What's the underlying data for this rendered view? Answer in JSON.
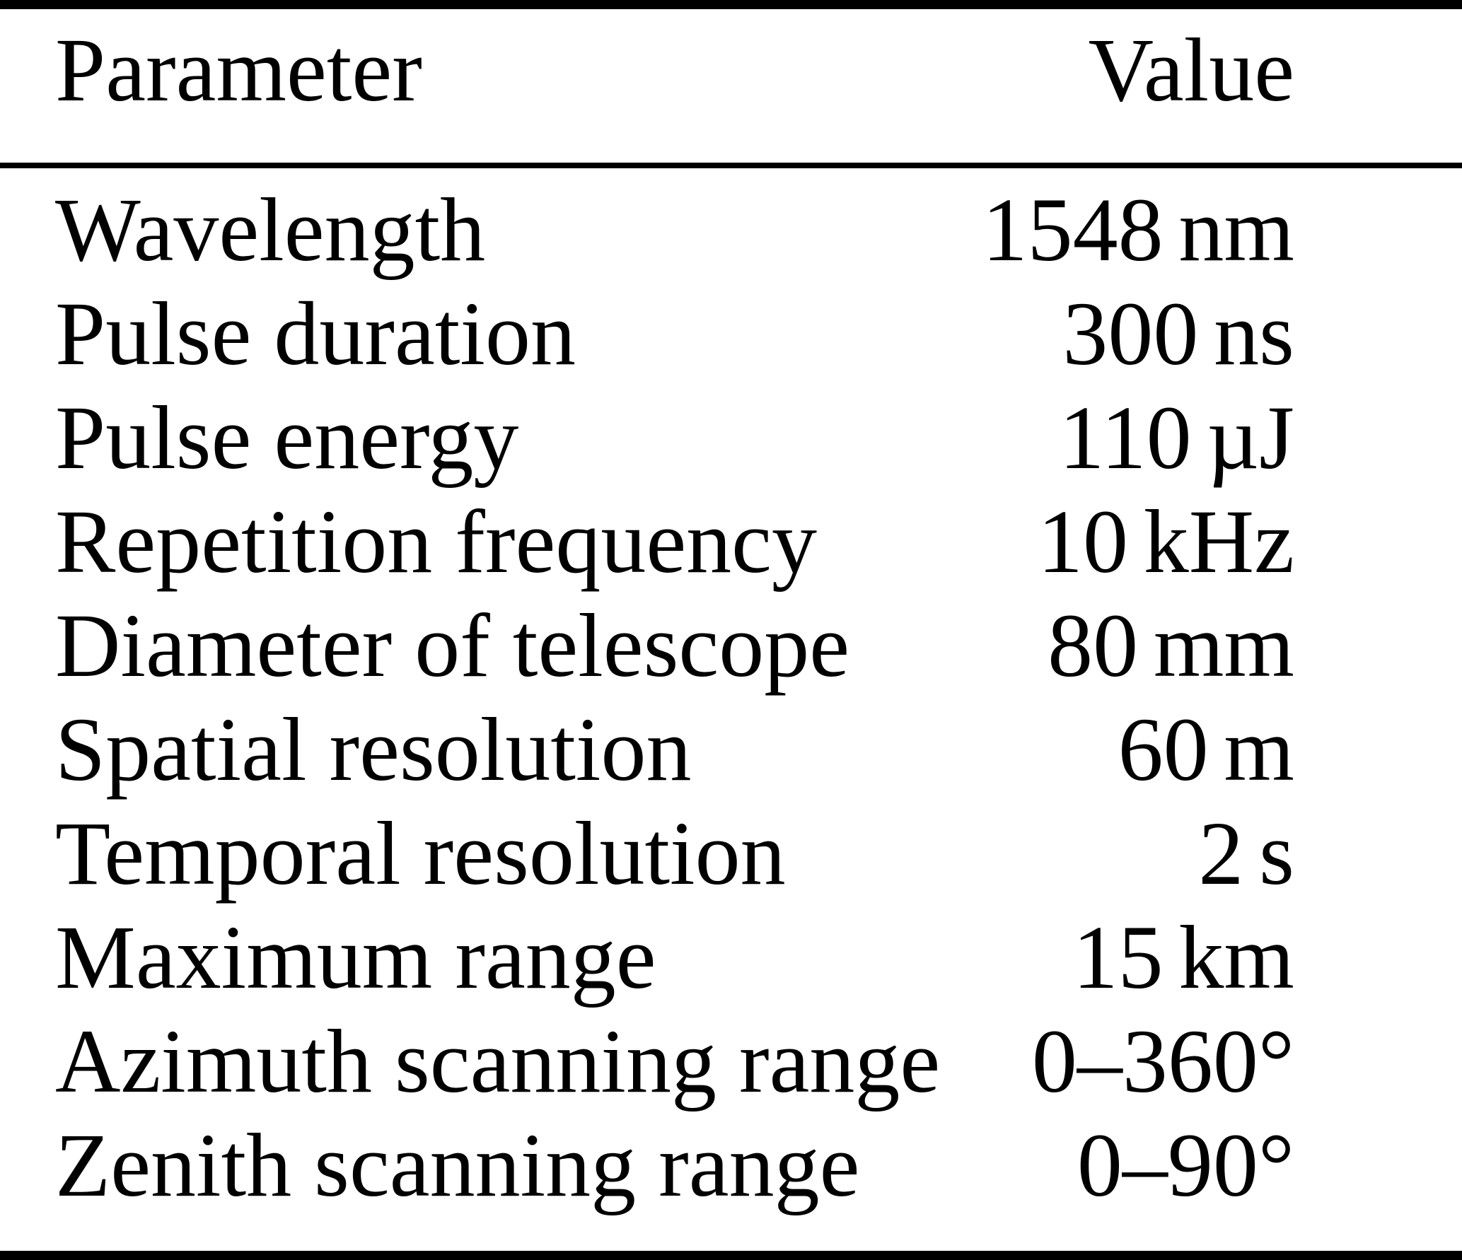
{
  "colors": {
    "background": "#ffffff",
    "text": "#000000",
    "rule": "#000000"
  },
  "table": {
    "header": {
      "parameter": "Parameter",
      "value": "Value"
    },
    "rows": [
      {
        "parameter": "Wavelength",
        "value": "1548 nm"
      },
      {
        "parameter": "Pulse duration",
        "value": "300 ns"
      },
      {
        "parameter": "Pulse energy",
        "value": "110 µJ"
      },
      {
        "parameter": "Repetition frequency",
        "value": "10 kHz"
      },
      {
        "parameter": "Diameter of telescope",
        "value": "80 mm"
      },
      {
        "parameter": "Spatial resolution",
        "value": "60 m"
      },
      {
        "parameter": "Temporal resolution",
        "value": "2 s"
      },
      {
        "parameter": "Maximum range",
        "value": "15 km"
      },
      {
        "parameter": "Azimuth scanning range",
        "value": "0–360°"
      },
      {
        "parameter": "Zenith scanning range",
        "value": "0–90°"
      }
    ]
  }
}
